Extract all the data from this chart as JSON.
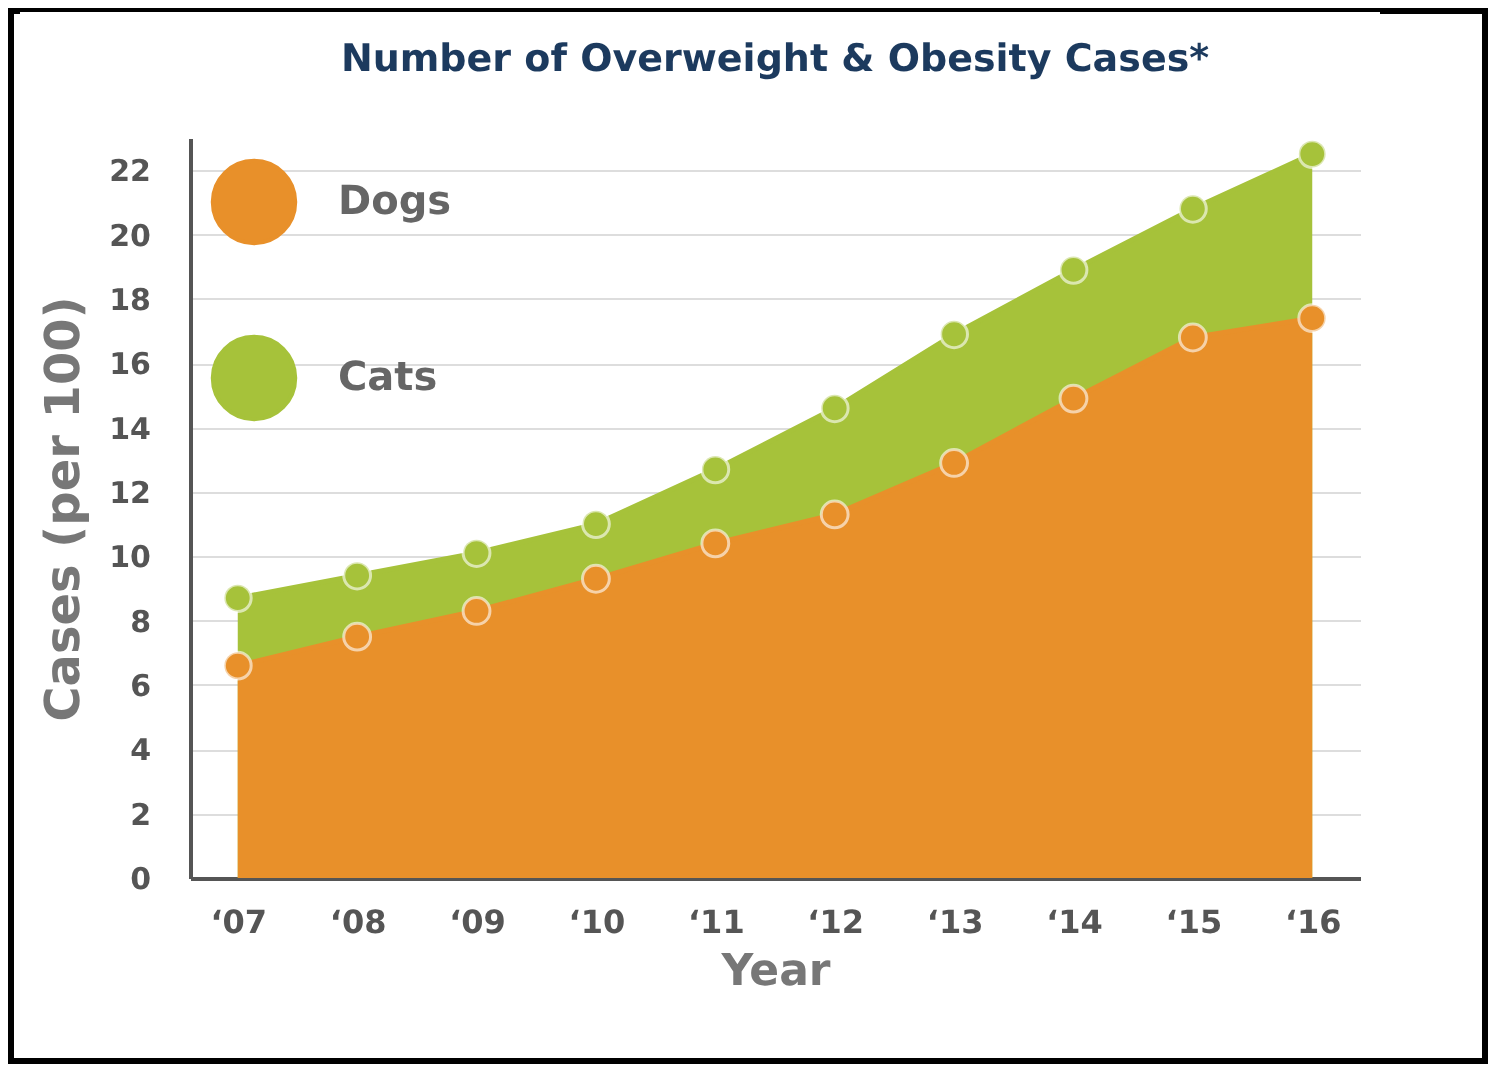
{
  "chart_data": {
    "type": "area",
    "title": "Number of Overweight & Obesity Cases*",
    "xlabel": "Year",
    "ylabel": "Cases (per 100)",
    "categories": [
      "‘07",
      "‘08",
      "‘09",
      "‘10",
      "‘11",
      "‘12",
      "‘13",
      "‘14",
      "‘15",
      "‘16"
    ],
    "series": [
      {
        "name": "Dogs",
        "color": "#e8902a",
        "values": [
          6.6,
          7.5,
          8.3,
          9.3,
          10.4,
          11.3,
          12.9,
          14.9,
          16.8,
          17.4
        ]
      },
      {
        "name": "Cats",
        "color": "#a6c23a",
        "values": [
          8.7,
          9.4,
          10.1,
          11.0,
          12.7,
          14.6,
          16.9,
          18.9,
          20.8,
          22.5
        ]
      }
    ],
    "ylim": [
      0,
      23
    ],
    "yticks": [
      0,
      2,
      4,
      6,
      8,
      10,
      12,
      14,
      16,
      18,
      20,
      22
    ],
    "grid": "y",
    "legend": "top left",
    "marker": "circle"
  }
}
